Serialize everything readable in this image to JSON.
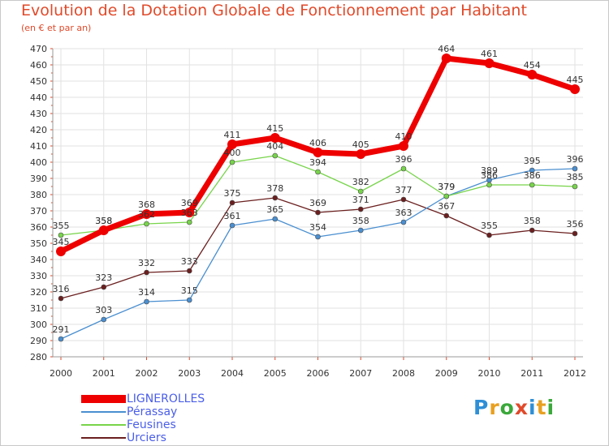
{
  "header": {
    "title": "Evolution de la Dotation Globale de Fonctionnement par Habitant",
    "subtitle": "(en € et par an)"
  },
  "logo": {
    "text": "Proxiti",
    "letter_colors": [
      "#2e8fd6",
      "#e8a020",
      "#3aa83a",
      "#e04a2a",
      "#2e8fd6",
      "#e8a020",
      "#3aa83a"
    ]
  },
  "chart_data": {
    "type": "line",
    "title": "Evolution de la Dotation Globale de Fonctionnement par Habitant",
    "subtitle": "(en € et par an)",
    "xlabel": "",
    "ylabel": "",
    "categories": [
      "2000",
      "2001",
      "2002",
      "2003",
      "2004",
      "2005",
      "2006",
      "2007",
      "2008",
      "2009",
      "2010",
      "2011",
      "2012"
    ],
    "ylim": [
      280,
      470
    ],
    "yticks": [
      280,
      290,
      300,
      310,
      320,
      330,
      340,
      350,
      360,
      370,
      380,
      390,
      400,
      410,
      420,
      430,
      440,
      450,
      460,
      470
    ],
    "grid": true,
    "legend_position": "bottom-left",
    "series": [
      {
        "name": "Urciers",
        "color": "#6b1f1f",
        "values": [
          316,
          323,
          332,
          333,
          375,
          378,
          369,
          371,
          377,
          367,
          355,
          358,
          356
        ]
      },
      {
        "name": "Pérassay",
        "color": "#4a8fd0",
        "values": [
          291,
          303,
          314,
          315,
          361,
          365,
          354,
          358,
          363,
          379,
          389,
          395,
          396
        ]
      },
      {
        "name": "Feusines",
        "color": "#77d44a",
        "values": [
          355,
          358,
          362,
          363,
          400,
          404,
          394,
          382,
          396,
          379,
          386,
          386,
          385
        ]
      },
      {
        "name": "LIGNEROLLES",
        "color": "#ee0000",
        "values": [
          345,
          358,
          368,
          369,
          411,
          415,
          406,
          405,
          410,
          464,
          461,
          454,
          445
        ]
      }
    ],
    "data_labels": {
      "Urciers": [
        "316",
        "323",
        "332",
        "333",
        "375",
        "378",
        "369",
        "371",
        "377",
        "367",
        "355",
        "358",
        "356"
      ],
      "Pérassay": [
        "291",
        "303",
        "314",
        "315",
        "361",
        "365",
        "354",
        "358",
        "363",
        "379",
        "389",
        "395",
        "396"
      ],
      "Feusines": [
        "355",
        "358",
        "362",
        "363",
        "400",
        "404",
        "394",
        "382",
        "396",
        "379",
        "386",
        "386",
        "385"
      ],
      "LIGNEROLLES": [
        "345",
        "358",
        "368",
        "369",
        "411",
        "415",
        "406",
        "405",
        "410",
        "464",
        "461",
        "454",
        "445"
      ]
    },
    "legend": [
      "LIGNEROLLES",
      "Pérassay",
      "Feusines",
      "Urciers"
    ]
  }
}
